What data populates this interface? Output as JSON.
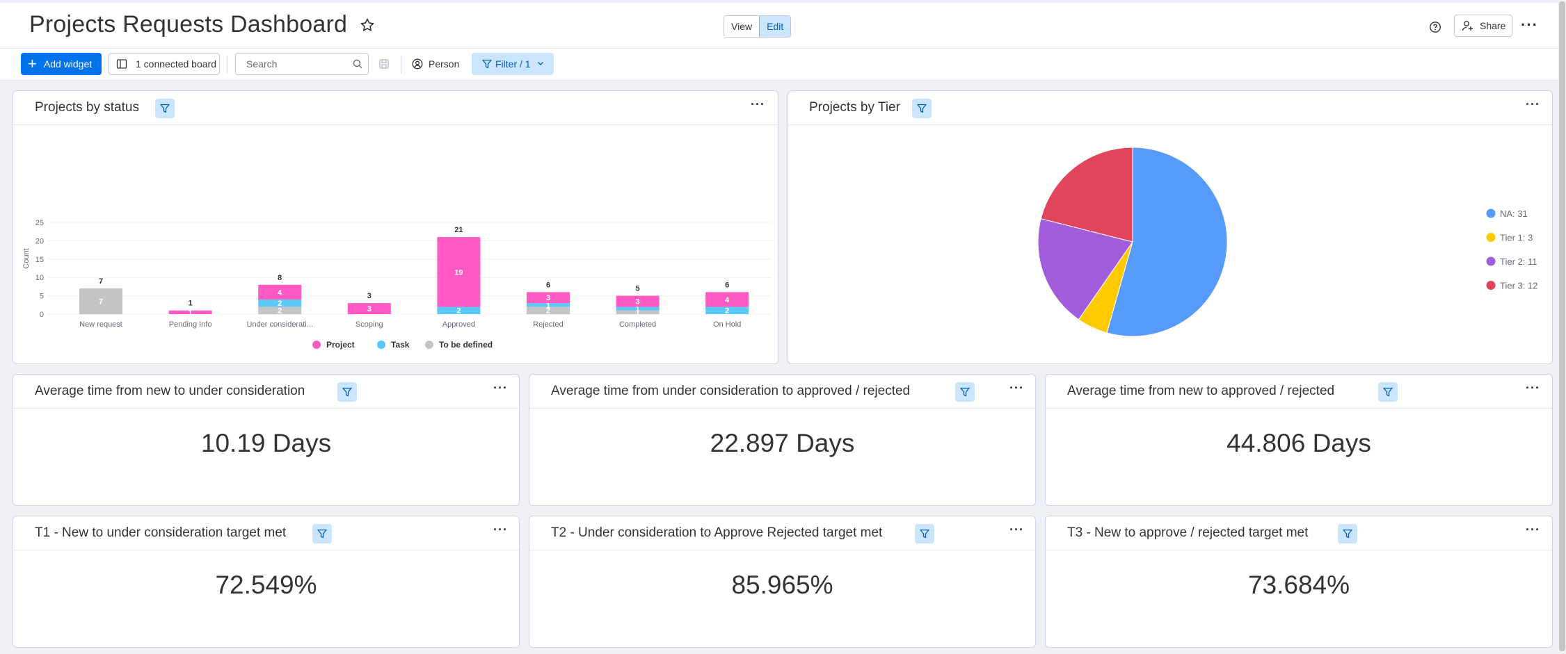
{
  "header": {
    "title": "Projects Requests Dashboard",
    "view_label": "View",
    "edit_label": "Edit",
    "share_label": "Share"
  },
  "toolbar": {
    "add_widget_label": "Add widget",
    "connected_boards_label": "1 connected board",
    "search_placeholder": "Search",
    "person_label": "Person",
    "filter_label": "Filter / 1"
  },
  "colors": {
    "project": "#ff5ac4",
    "task": "#5cc8f5",
    "to_be_defined": "#c4c4c4",
    "pie_na": "#579bfc",
    "pie_tier1": "#ffcb00",
    "pie_tier2": "#a25ddc",
    "pie_tier3": "#e2445c",
    "accent": "#0073ea"
  },
  "widgets": {
    "status_chart_title": "Projects by status",
    "tier_chart_title": "Projects by Tier",
    "numbers": [
      {
        "title": "Average time from new to under consideration",
        "value": "10.19 Days"
      },
      {
        "title": "Average time from under consideration to approved / rejected",
        "value": "22.897 Days"
      },
      {
        "title": "Average time from new to approved / rejected",
        "value": "44.806 Days"
      },
      {
        "title": "T1 - New to under consideration target met",
        "value": "72.549%"
      },
      {
        "title": "T2 - Under consideration to Approve Rejected target met",
        "value": "85.965%"
      },
      {
        "title": "T3 - New to approve / rejected target met",
        "value": "73.684%"
      }
    ]
  },
  "chart_data": [
    {
      "type": "bar",
      "stacked": true,
      "title": "Projects by status",
      "ylabel": "Count",
      "ylim": [
        0,
        25
      ],
      "yticks": [
        0,
        5,
        10,
        15,
        20,
        25
      ],
      "categories": [
        "New request",
        "Pending Info",
        "Under considerati...",
        "Scoping",
        "Approved",
        "Rejected",
        "Completed",
        "On Hold"
      ],
      "totals": [
        7,
        1,
        8,
        3,
        21,
        6,
        5,
        6
      ],
      "series": [
        {
          "name": "To be defined",
          "values": [
            7,
            0,
            2,
            0,
            0,
            2,
            1,
            0
          ]
        },
        {
          "name": "Task",
          "values": [
            0,
            0,
            2,
            0,
            2,
            1,
            1,
            2
          ]
        },
        {
          "name": "Project",
          "values": [
            0,
            1,
            4,
            3,
            19,
            3,
            3,
            4
          ]
        }
      ],
      "legend": [
        "Project",
        "Task",
        "To be defined"
      ],
      "legend_position": "bottom",
      "grid": true
    },
    {
      "type": "pie",
      "title": "Projects by Tier",
      "slices": [
        {
          "label": "NA: 31",
          "value": 31
        },
        {
          "label": "Tier 1: 3",
          "value": 3
        },
        {
          "label": "Tier 2: 11",
          "value": 11
        },
        {
          "label": "Tier 3: 12",
          "value": 12
        }
      ],
      "legend_position": "right"
    }
  ]
}
